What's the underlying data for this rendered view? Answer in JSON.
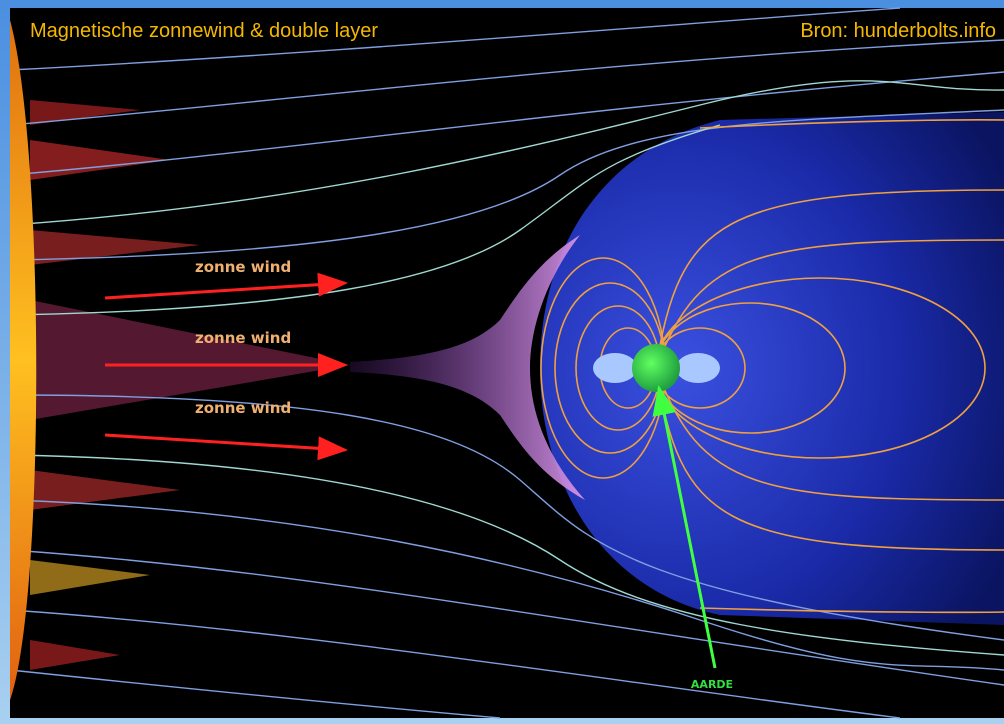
{
  "header": {
    "title": "Magnetische zonnewind & double layer",
    "source": "Bron: hunderbolts.info"
  },
  "labels": [
    "zonne wind",
    "zonne wind",
    "zonne wind"
  ],
  "earth_label": "AARDE"
}
